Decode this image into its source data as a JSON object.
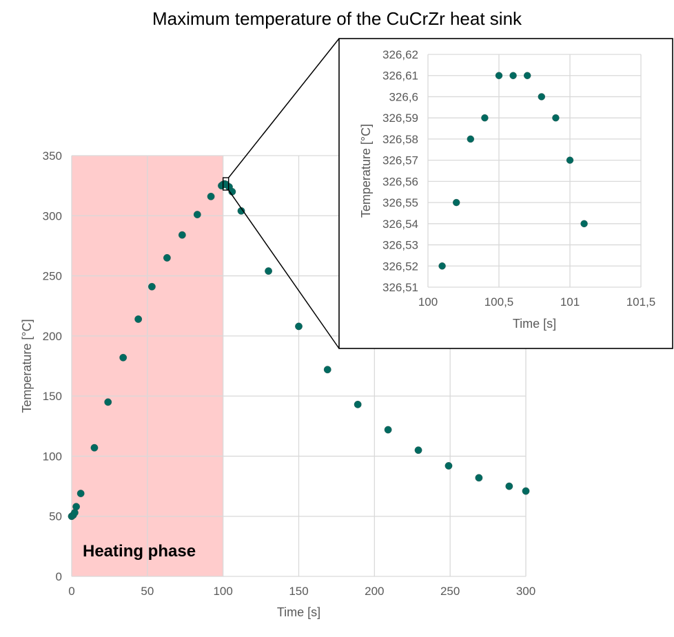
{
  "chart_data": [
    {
      "type": "scatter",
      "title": "Maximum temperature of the CuCrZr heat sink",
      "xlabel": "Time [s]",
      "ylabel": "Temperature [°C]",
      "xlim": [
        0,
        300
      ],
      "ylim": [
        0,
        350
      ],
      "x_ticks": [
        0,
        50,
        100,
        150,
        200,
        250,
        300
      ],
      "y_ticks": [
        0,
        50,
        100,
        150,
        200,
        250,
        300,
        350
      ],
      "x_tick_labels": [
        "0",
        "50",
        "100",
        "150",
        "200",
        "250",
        "300"
      ],
      "y_tick_labels": [
        "0",
        "50",
        "100",
        "150",
        "200",
        "250",
        "300",
        "350"
      ],
      "grid": true,
      "marker_color": "#006a60",
      "shaded_region": {
        "label": "Heating phase",
        "x_from": 0,
        "x_to": 100,
        "color": "#ffcccc"
      },
      "zoom_box": {
        "x_from": 100,
        "x_to": 101.5,
        "y_from": 326.51,
        "y_to": 326.62
      },
      "points": [
        {
          "x": 0,
          "y": 50
        },
        {
          "x": 1,
          "y": 51
        },
        {
          "x": 2,
          "y": 53
        },
        {
          "x": 3,
          "y": 58
        },
        {
          "x": 6,
          "y": 69
        },
        {
          "x": 15,
          "y": 107
        },
        {
          "x": 24,
          "y": 145
        },
        {
          "x": 34,
          "y": 182
        },
        {
          "x": 44,
          "y": 214
        },
        {
          "x": 53,
          "y": 241
        },
        {
          "x": 63,
          "y": 265
        },
        {
          "x": 73,
          "y": 284
        },
        {
          "x": 83,
          "y": 301
        },
        {
          "x": 92,
          "y": 316
        },
        {
          "x": 99,
          "y": 325
        },
        {
          "x": 100,
          "y": 326
        },
        {
          "x": 101,
          "y": 326.5
        },
        {
          "x": 102,
          "y": 326
        },
        {
          "x": 104,
          "y": 324
        },
        {
          "x": 106,
          "y": 320
        },
        {
          "x": 112,
          "y": 304
        },
        {
          "x": 130,
          "y": 254
        },
        {
          "x": 150,
          "y": 208
        },
        {
          "x": 169,
          "y": 172
        },
        {
          "x": 189,
          "y": 143
        },
        {
          "x": 209,
          "y": 122
        },
        {
          "x": 229,
          "y": 105
        },
        {
          "x": 249,
          "y": 92
        },
        {
          "x": 269,
          "y": 82
        },
        {
          "x": 289,
          "y": 75
        },
        {
          "x": 300,
          "y": 71
        }
      ]
    },
    {
      "type": "scatter",
      "xlabel": "Time [s]",
      "ylabel": "Temperature [°C]",
      "xlim": [
        100,
        101.5
      ],
      "ylim": [
        326.51,
        326.62
      ],
      "x_ticks": [
        100,
        100.5,
        101,
        101.5
      ],
      "y_ticks": [
        326.51,
        326.52,
        326.53,
        326.54,
        326.55,
        326.56,
        326.57,
        326.58,
        326.59,
        326.6,
        326.61,
        326.62
      ],
      "x_tick_labels": [
        "100",
        "100,5",
        "101",
        "101,5"
      ],
      "y_tick_labels": [
        "326,51",
        "326,52",
        "326,53",
        "326,54",
        "326,55",
        "326,56",
        "326,57",
        "326,58",
        "326,59",
        "326,6",
        "326,61",
        "326,62"
      ],
      "grid": true,
      "marker_color": "#006a60",
      "points": [
        {
          "x": 100.1,
          "y": 326.52
        },
        {
          "x": 100.2,
          "y": 326.55
        },
        {
          "x": 100.3,
          "y": 326.58
        },
        {
          "x": 100.4,
          "y": 326.59
        },
        {
          "x": 100.5,
          "y": 326.61
        },
        {
          "x": 100.6,
          "y": 326.61
        },
        {
          "x": 100.7,
          "y": 326.61
        },
        {
          "x": 100.8,
          "y": 326.6
        },
        {
          "x": 100.9,
          "y": 326.59
        },
        {
          "x": 101.0,
          "y": 326.57
        },
        {
          "x": 101.1,
          "y": 326.54
        }
      ]
    }
  ]
}
